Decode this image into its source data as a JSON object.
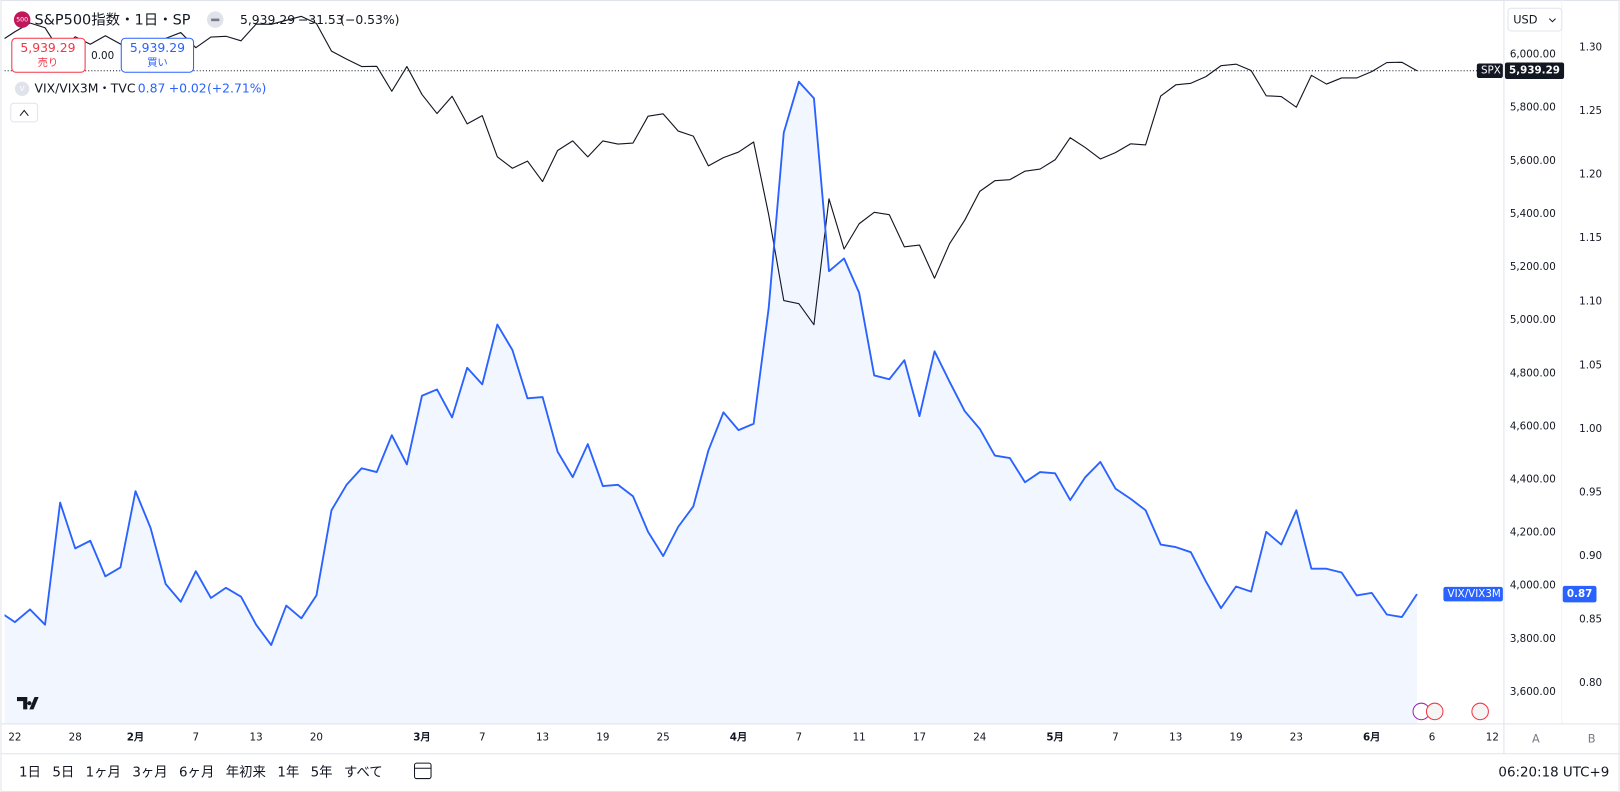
{
  "chart_data": {
    "type": "line",
    "categories": [
      null,
      "22",
      null,
      null,
      null,
      "28",
      null,
      null,
      null,
      "2月",
      null,
      null,
      null,
      "7",
      null,
      null,
      null,
      "13",
      null,
      null,
      null,
      "20",
      null,
      null,
      null,
      null,
      null,
      null,
      "3月",
      null,
      null,
      null,
      "7",
      null,
      null,
      null,
      "13",
      null,
      null,
      null,
      "19",
      null,
      null,
      null,
      "25",
      null,
      null,
      null,
      null,
      "4月",
      null,
      null,
      null,
      "7",
      null,
      null,
      null,
      "11",
      null,
      null,
      null,
      "17",
      null,
      null,
      null,
      "24",
      null,
      null,
      null,
      null,
      "5月",
      null,
      null,
      null,
      "7",
      null,
      null,
      null,
      "13",
      null,
      null,
      null,
      "19",
      null,
      null,
      null,
      "23",
      null,
      null,
      null,
      null,
      "6月",
      null,
      null,
      null,
      "6",
      null,
      null,
      null,
      "12"
    ],
    "series": [
      {
        "name": "S&P500指数・1日・SP",
        "tag": "SPX",
        "color": "#131722",
        "axis": "y",
        "fill": false,
        "price_line": true,
        "last_label": "5,939.29",
        "last": "5,939.29",
        "change": "−31.53",
        "change_pct": "(−0.53%)",
        "values": [
          6049,
          6086,
          6119,
          6101,
          6012,
          6067,
          6039,
          6071,
          6040,
          5994,
          6037,
          6061,
          6083,
          6026,
          6066,
          6069,
          6052,
          6115,
          6114,
          6129,
          6144,
          6117,
          6013,
          5983,
          5955,
          5956,
          5862,
          5955,
          5850,
          5778,
          5843,
          5739,
          5770,
          5615,
          5572,
          5599,
          5522,
          5639,
          5675,
          5615,
          5675,
          5663,
          5667,
          5768,
          5777,
          5712,
          5693,
          5581,
          5612,
          5633,
          5671,
          5397,
          5074,
          5062,
          4983,
          5457,
          5268,
          5363,
          5406,
          5397,
          5276,
          5283,
          5158,
          5288,
          5376,
          5485,
          5525,
          5529,
          5561,
          5569,
          5604,
          5687,
          5650,
          5607,
          5631,
          5664,
          5660,
          5844,
          5886,
          5892,
          5917,
          5958,
          5964,
          5940,
          5845,
          5842,
          5802,
          5922,
          5889,
          5912,
          5912,
          5936,
          5970,
          5971,
          5939.29,
          null,
          null,
          null,
          null,
          null
        ]
      },
      {
        "name": "VIX/VIX3M・TVC",
        "tag": "VIX/VIX3M",
        "color": "#2962ff",
        "axis": "y2",
        "fill": true,
        "price_line": false,
        "last_label": "0.87",
        "last": "0.87",
        "change": "+0.02",
        "change_pct": "(+2.71%)",
        "values": [
          0.856,
          0.848,
          0.858,
          0.846,
          0.942,
          0.906,
          0.912,
          0.884,
          0.891,
          0.951,
          0.922,
          0.878,
          0.864,
          0.888,
          0.867,
          0.875,
          0.868,
          0.846,
          0.83,
          0.861,
          0.851,
          0.869,
          0.936,
          0.956,
          0.969,
          0.966,
          0.995,
          0.972,
          1.026,
          1.031,
          1.009,
          1.048,
          1.035,
          1.082,
          1.062,
          1.024,
          1.025,
          0.982,
          0.962,
          0.988,
          0.955,
          0.956,
          0.947,
          0.919,
          0.9,
          0.923,
          0.939,
          0.983,
          1.013,
          0.999,
          1.004,
          1.095,
          1.233,
          1.273,
          1.26,
          1.124,
          1.134,
          1.107,
          1.042,
          1.039,
          1.054,
          1.01,
          1.061,
          1.037,
          1.014,
          1.0,
          0.979,
          0.977,
          0.958,
          0.966,
          0.965,
          0.944,
          0.962,
          0.974,
          0.953,
          0.945,
          0.936,
          0.909,
          0.907,
          0.903,
          0.88,
          0.859,
          0.876,
          0.872,
          0.919,
          0.909,
          0.936,
          0.89,
          0.89,
          0.887,
          0.869,
          0.871,
          0.854,
          0.852,
          0.87,
          null,
          null,
          null,
          null,
          null
        ]
      }
    ],
    "ylim": [
      3480,
      6190
    ],
    "yticks": [
      {
        "value": 3600,
        "label": "3,600.00"
      },
      {
        "value": 3800,
        "label": "3,800.00"
      },
      {
        "value": 4000,
        "label": "4,000.00"
      },
      {
        "value": 4200,
        "label": "4,200.00"
      },
      {
        "value": 4400,
        "label": "4,400.00"
      },
      {
        "value": 4600,
        "label": "4,600.00"
      },
      {
        "value": 4800,
        "label": "4,800.00"
      },
      {
        "value": 5000,
        "label": "5,000.00"
      },
      {
        "value": 5200,
        "label": "5,200.00"
      },
      {
        "value": 5400,
        "label": "5,400.00"
      },
      {
        "value": 5600,
        "label": "5,600.00"
      },
      {
        "value": 5800,
        "label": "5,800.00"
      },
      {
        "value": 6000,
        "label": "6,000.00"
      }
    ],
    "y2lim": [
      0.768,
      1.334
    ],
    "y2ticks": [
      {
        "value": 0.8,
        "label": "0.80"
      },
      {
        "value": 0.85,
        "label": "0.85"
      },
      {
        "value": 0.9,
        "label": "0.90"
      },
      {
        "value": 0.95,
        "label": "0.95"
      },
      {
        "value": 1.0,
        "label": "1.00"
      },
      {
        "value": 1.05,
        "label": "1.05"
      },
      {
        "value": 1.1,
        "label": "1.10"
      },
      {
        "value": 1.15,
        "label": "1.15"
      },
      {
        "value": 1.2,
        "label": "1.20"
      },
      {
        "value": 1.25,
        "label": "1.25"
      },
      {
        "value": 1.3,
        "label": "1.30"
      }
    ],
    "grid": false
  },
  "header": {
    "symbol_icon": "500",
    "compare_icon": "V"
  },
  "trade": {
    "sell_price": "5,939.29",
    "sell_label": "売り",
    "spread": "0.00",
    "buy_price": "5,939.29",
    "buy_label": "買い"
  },
  "axis_panel": {
    "currency": "USD",
    "buttons": [
      "A",
      "B"
    ]
  },
  "toolbar": {
    "ranges": [
      "1日",
      "5日",
      "1ヶ月",
      "3ヶ月",
      "6ヶ月",
      "年初来",
      "1年",
      "5年",
      "すべて"
    ],
    "clock": "06:20:18 UTC+9"
  }
}
